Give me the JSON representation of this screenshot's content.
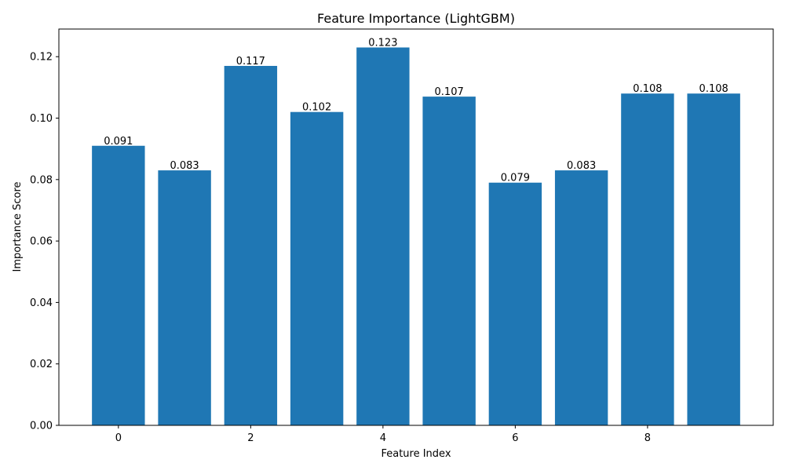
{
  "chart_data": {
    "type": "bar",
    "title": "Feature Importance (LightGBM)",
    "xlabel": "Feature Index",
    "ylabel": "Importance Score",
    "categories": [
      0,
      1,
      2,
      3,
      4,
      5,
      6,
      7,
      8,
      9
    ],
    "values": [
      0.091,
      0.083,
      0.117,
      0.102,
      0.123,
      0.107,
      0.079,
      0.083,
      0.108,
      0.108
    ],
    "value_labels": [
      "0.091",
      "0.083",
      "0.117",
      "0.102",
      "0.123",
      "0.107",
      "0.079",
      "0.083",
      "0.108",
      "0.108"
    ],
    "xlim": [
      -0.9,
      9.9
    ],
    "ylim": [
      0,
      0.129
    ],
    "x_ticks": [
      0,
      2,
      4,
      6,
      8
    ],
    "x_tick_labels": [
      "0",
      "2",
      "4",
      "6",
      "8"
    ],
    "y_ticks": [
      0,
      0.02,
      0.04,
      0.06,
      0.08,
      0.1,
      0.12
    ],
    "y_tick_labels": [
      "0.00",
      "0.02",
      "0.04",
      "0.06",
      "0.08",
      "0.10",
      "0.12"
    ],
    "bar_color": "#1f77b4",
    "grid": false
  }
}
